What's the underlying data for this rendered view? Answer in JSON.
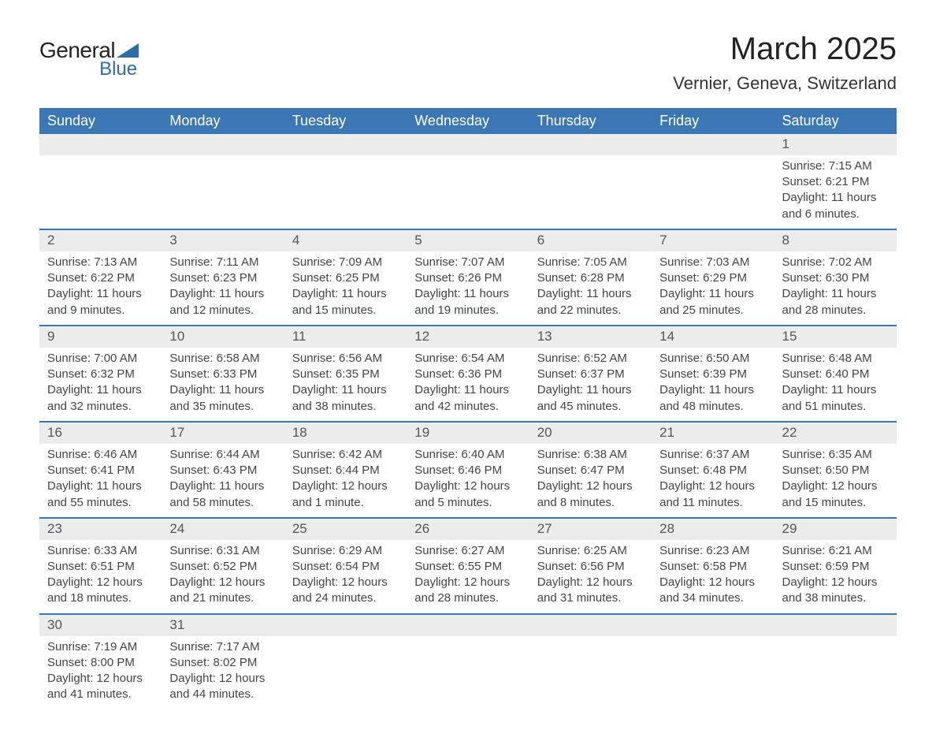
{
  "logo": {
    "text_top": "General",
    "text_bottom": "Blue",
    "triangle_color": "#2e6ca8"
  },
  "title": "March 2025",
  "location": "Vernier, Geneva, Switzerland",
  "colors": {
    "header_bg": "#3b76b5",
    "header_text": "#ffffff",
    "daynum_bg": "#ececec",
    "row_border": "#3b76b5",
    "body_text": "#444444"
  },
  "weekdays": [
    "Sunday",
    "Monday",
    "Tuesday",
    "Wednesday",
    "Thursday",
    "Friday",
    "Saturday"
  ],
  "weeks": [
    [
      null,
      null,
      null,
      null,
      null,
      null,
      {
        "n": "1",
        "sr": "7:15 AM",
        "ss": "6:21 PM",
        "dl": "11 hours and 6 minutes."
      }
    ],
    [
      {
        "n": "2",
        "sr": "7:13 AM",
        "ss": "6:22 PM",
        "dl": "11 hours and 9 minutes."
      },
      {
        "n": "3",
        "sr": "7:11 AM",
        "ss": "6:23 PM",
        "dl": "11 hours and 12 minutes."
      },
      {
        "n": "4",
        "sr": "7:09 AM",
        "ss": "6:25 PM",
        "dl": "11 hours and 15 minutes."
      },
      {
        "n": "5",
        "sr": "7:07 AM",
        "ss": "6:26 PM",
        "dl": "11 hours and 19 minutes."
      },
      {
        "n": "6",
        "sr": "7:05 AM",
        "ss": "6:28 PM",
        "dl": "11 hours and 22 minutes."
      },
      {
        "n": "7",
        "sr": "7:03 AM",
        "ss": "6:29 PM",
        "dl": "11 hours and 25 minutes."
      },
      {
        "n": "8",
        "sr": "7:02 AM",
        "ss": "6:30 PM",
        "dl": "11 hours and 28 minutes."
      }
    ],
    [
      {
        "n": "9",
        "sr": "7:00 AM",
        "ss": "6:32 PM",
        "dl": "11 hours and 32 minutes."
      },
      {
        "n": "10",
        "sr": "6:58 AM",
        "ss": "6:33 PM",
        "dl": "11 hours and 35 minutes."
      },
      {
        "n": "11",
        "sr": "6:56 AM",
        "ss": "6:35 PM",
        "dl": "11 hours and 38 minutes."
      },
      {
        "n": "12",
        "sr": "6:54 AM",
        "ss": "6:36 PM",
        "dl": "11 hours and 42 minutes."
      },
      {
        "n": "13",
        "sr": "6:52 AM",
        "ss": "6:37 PM",
        "dl": "11 hours and 45 minutes."
      },
      {
        "n": "14",
        "sr": "6:50 AM",
        "ss": "6:39 PM",
        "dl": "11 hours and 48 minutes."
      },
      {
        "n": "15",
        "sr": "6:48 AM",
        "ss": "6:40 PM",
        "dl": "11 hours and 51 minutes."
      }
    ],
    [
      {
        "n": "16",
        "sr": "6:46 AM",
        "ss": "6:41 PM",
        "dl": "11 hours and 55 minutes."
      },
      {
        "n": "17",
        "sr": "6:44 AM",
        "ss": "6:43 PM",
        "dl": "11 hours and 58 minutes."
      },
      {
        "n": "18",
        "sr": "6:42 AM",
        "ss": "6:44 PM",
        "dl": "12 hours and 1 minute."
      },
      {
        "n": "19",
        "sr": "6:40 AM",
        "ss": "6:46 PM",
        "dl": "12 hours and 5 minutes."
      },
      {
        "n": "20",
        "sr": "6:38 AM",
        "ss": "6:47 PM",
        "dl": "12 hours and 8 minutes."
      },
      {
        "n": "21",
        "sr": "6:37 AM",
        "ss": "6:48 PM",
        "dl": "12 hours and 11 minutes."
      },
      {
        "n": "22",
        "sr": "6:35 AM",
        "ss": "6:50 PM",
        "dl": "12 hours and 15 minutes."
      }
    ],
    [
      {
        "n": "23",
        "sr": "6:33 AM",
        "ss": "6:51 PM",
        "dl": "12 hours and 18 minutes."
      },
      {
        "n": "24",
        "sr": "6:31 AM",
        "ss": "6:52 PM",
        "dl": "12 hours and 21 minutes."
      },
      {
        "n": "25",
        "sr": "6:29 AM",
        "ss": "6:54 PM",
        "dl": "12 hours and 24 minutes."
      },
      {
        "n": "26",
        "sr": "6:27 AM",
        "ss": "6:55 PM",
        "dl": "12 hours and 28 minutes."
      },
      {
        "n": "27",
        "sr": "6:25 AM",
        "ss": "6:56 PM",
        "dl": "12 hours and 31 minutes."
      },
      {
        "n": "28",
        "sr": "6:23 AM",
        "ss": "6:58 PM",
        "dl": "12 hours and 34 minutes."
      },
      {
        "n": "29",
        "sr": "6:21 AM",
        "ss": "6:59 PM",
        "dl": "12 hours and 38 minutes."
      }
    ],
    [
      {
        "n": "30",
        "sr": "7:19 AM",
        "ss": "8:00 PM",
        "dl": "12 hours and 41 minutes."
      },
      {
        "n": "31",
        "sr": "7:17 AM",
        "ss": "8:02 PM",
        "dl": "12 hours and 44 minutes."
      },
      null,
      null,
      null,
      null,
      null
    ]
  ],
  "labels": {
    "sunrise": "Sunrise: ",
    "sunset": "Sunset: ",
    "daylight": "Daylight: "
  }
}
